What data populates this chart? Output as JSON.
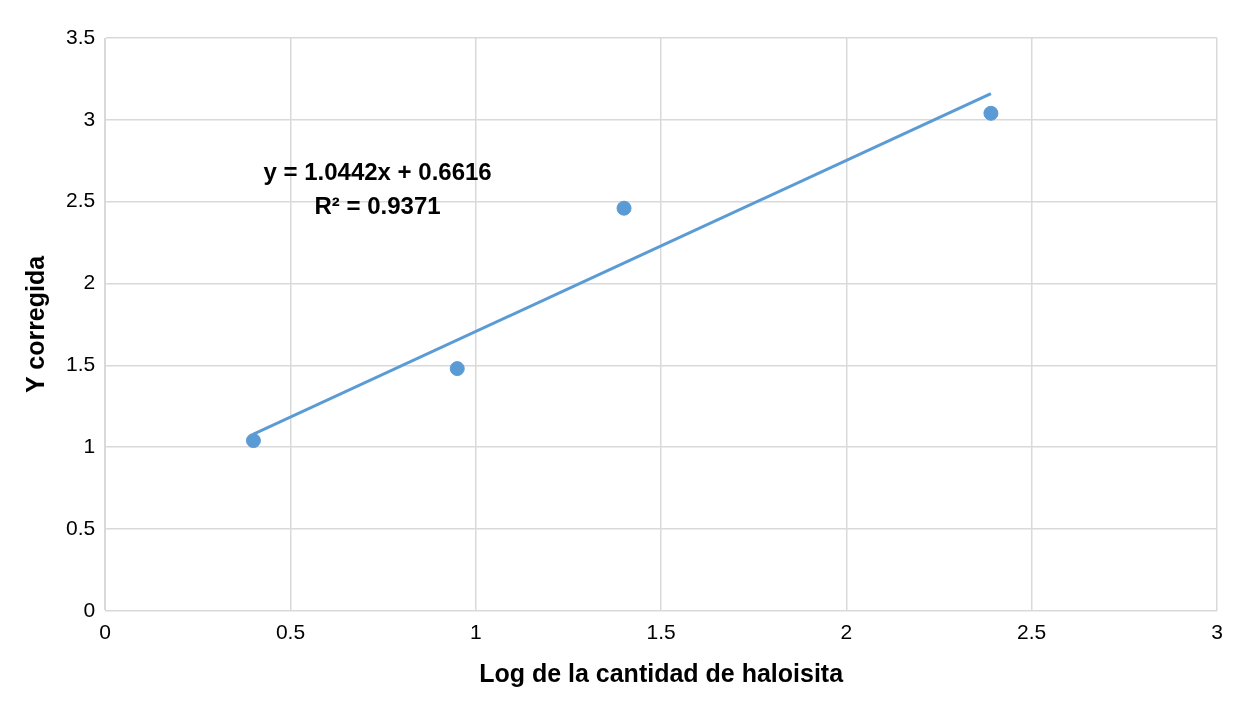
{
  "chart_data": {
    "type": "scatter",
    "xlabel": "Log de la cantidad de haloisita",
    "ylabel": "Y corregida",
    "xlim": [
      0,
      3
    ],
    "xticks": [
      0,
      0.5,
      1,
      1.5,
      2,
      2.5,
      3
    ],
    "ylim": [
      0,
      3.5
    ],
    "yticks": [
      0,
      0.5,
      1,
      1.5,
      2,
      2.5,
      3,
      3.5
    ],
    "grid": true,
    "legend": false,
    "series": [
      {
        "type": "scatter",
        "color": "#5b9bd5",
        "marker": "circle",
        "x": [
          0.4,
          0.95,
          1.4,
          2.39
        ],
        "values": [
          1.04,
          1.48,
          2.46,
          3.04
        ]
      },
      {
        "type": "line",
        "color": "#5b9bd5",
        "marker": "none",
        "line_style": "solid",
        "x": [
          0.4,
          2.39
        ],
        "values": [
          1.08,
          3.16
        ]
      }
    ],
    "annotations": [
      "y = 1.0442x + 0.6616",
      "R² = 0.9371"
    ]
  }
}
